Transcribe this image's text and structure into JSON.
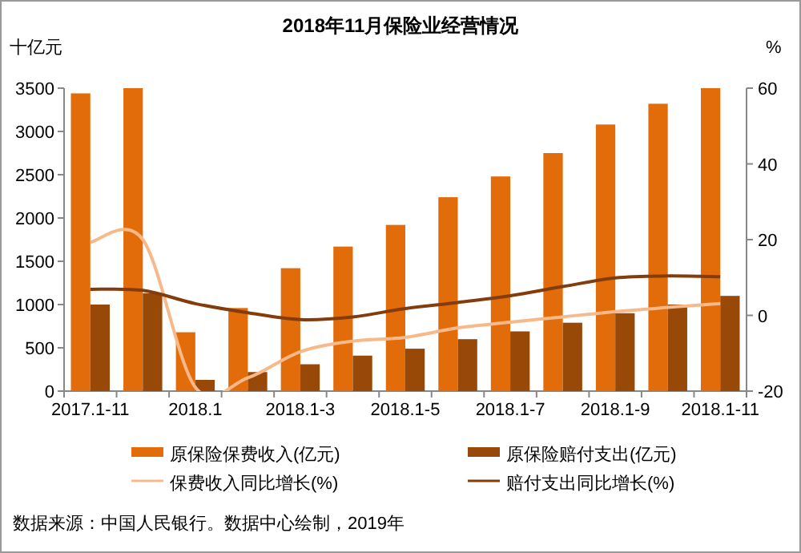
{
  "chart_data": {
    "type": "bar",
    "title": "2018年11月保险业经营情况",
    "categories": [
      "2017.1-11",
      null,
      "2018.1",
      null,
      "2018.1-3",
      null,
      "2018.1-5",
      null,
      "2018.1-7",
      null,
      "2018.1-9",
      null,
      "2018.1-11"
    ],
    "series": [
      {
        "name": "原保险保费收入(亿元)",
        "color": "#e36c0a",
        "values": [
          3440,
          3500,
          680,
          960,
          1420,
          1670,
          1920,
          2240,
          2480,
          2750,
          3080,
          3320,
          3500
        ]
      },
      {
        "name": "原保险赔付支出(亿元)",
        "color": "#984807",
        "values": [
          1000,
          1130,
          130,
          220,
          310,
          410,
          490,
          600,
          690,
          790,
          900,
          1000,
          1100
        ]
      },
      {
        "name": "保费收入同比增长(%)",
        "type": "line",
        "axis": "y2",
        "color": "#f8b98a",
        "values": [
          19.3,
          20,
          -19,
          -16.5,
          -9.6,
          -6.8,
          -5.8,
          -3.3,
          -1.8,
          -0.4,
          1,
          2.1,
          3.1
        ]
      },
      {
        "name": "赔付支出同比增长(%)",
        "type": "line",
        "axis": "y2",
        "color": "#843c0c",
        "values": [
          6.9,
          6.6,
          3.1,
          0.7,
          -1.1,
          -0.4,
          1.8,
          3.4,
          5.2,
          7.6,
          9.9,
          10.4,
          10.2
        ]
      }
    ],
    "ylabel": "十亿元",
    "y2label": "%",
    "ylim": [
      0,
      3500
    ],
    "yticks": [
      0,
      500,
      1000,
      1500,
      2000,
      2500,
      3000,
      3500
    ],
    "y2lim": [
      -20,
      60
    ],
    "y2ticks": [
      -20,
      0,
      20,
      40,
      60
    ],
    "legend": "bottom",
    "annotations": [
      "数据来源：中国人民银行。数据中心绘制，2019年"
    ]
  }
}
